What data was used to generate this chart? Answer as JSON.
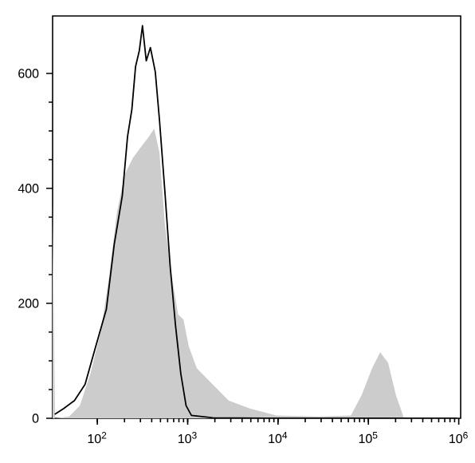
{
  "chart_data": {
    "type": "area",
    "log": "x",
    "grid": false,
    "xlim": [
      32,
      1050000
    ],
    "ylim": [
      0,
      700
    ],
    "xticks": [
      {
        "value": 100,
        "label": "10$^{2}$"
      },
      {
        "value": 1000,
        "label": "10$^{3}$"
      },
      {
        "value": 10000,
        "label": "10$^{4}$"
      },
      {
        "value": 100000,
        "label": "10$^{5}$"
      },
      {
        "value": 1000000,
        "label": "10$^{6}$"
      }
    ],
    "yticks": [
      0,
      200,
      400,
      600
    ],
    "series": [
      {
        "color": "#cccccc",
        "x": [
          32,
          34,
          48.8,
          64,
          84,
          110,
          135,
          165,
          202,
          248,
          304,
          372,
          426,
          488,
          558,
          640,
          783,
          897,
          1030,
          1260,
          1890,
          2840,
          4880,
          9600,
          28400,
          64000,
          84000,
          110000,
          135000,
          165000,
          202000,
          248000
        ],
        "values": [
          373,
          0,
          3,
          22,
          78,
          153,
          247,
          359,
          425,
          453,
          472,
          490,
          504,
          462,
          340,
          265,
          181,
          172,
          125,
          87,
          59,
          31,
          17,
          5,
          3,
          5,
          40,
          87,
          115,
          97,
          40,
          0
        ]
      },
      {
        "type": "line",
        "color": "#000000",
        "x": [
          33.8,
          42.5,
          55.9,
          73.2,
          96,
          126,
          154,
          189,
          216,
          241,
          265,
          292,
          316,
          348,
          387,
          438,
          488,
          558,
          640,
          733,
          839,
          960,
          1100,
          1890,
          7330,
          960000
        ],
        "values": [
          7,
          17,
          31,
          59,
          125,
          190,
          303,
          387,
          490,
          537,
          612,
          640,
          683,
          622,
          645,
          603,
          518,
          397,
          265,
          162,
          78,
          22,
          5,
          1,
          0,
          0
        ]
      }
    ]
  }
}
